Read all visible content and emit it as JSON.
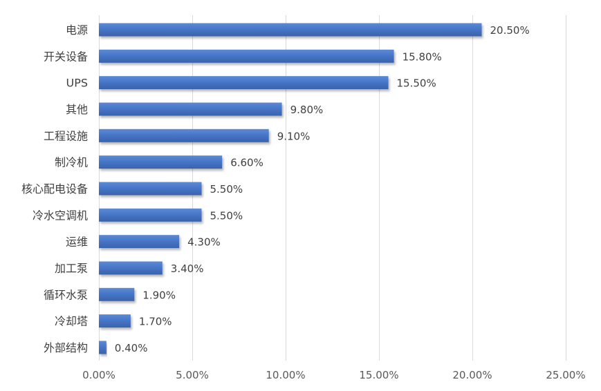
{
  "chart_data": {
    "type": "bar",
    "orientation": "horizontal",
    "categories": [
      "电源",
      "开关设备",
      "UPS",
      "其他",
      "工程设施",
      "制冷机",
      "核心配电设备",
      "冷水空调机",
      "运维",
      "加工泵",
      "循环水泵",
      "冷却塔",
      "外部结构"
    ],
    "values": [
      20.5,
      15.8,
      15.5,
      9.8,
      9.1,
      6.6,
      5.5,
      5.5,
      4.3,
      3.4,
      1.9,
      1.7,
      0.4
    ],
    "value_labels": [
      "20.50%",
      "15.80%",
      "15.50%",
      "9.80%",
      "9.10%",
      "6.60%",
      "5.50%",
      "5.50%",
      "4.30%",
      "3.40%",
      "1.90%",
      "1.70%",
      "0.40%"
    ],
    "x_ticks": [
      "0.00%",
      "5.00%",
      "10.00%",
      "15.00%",
      "20.00%",
      "25.00%"
    ],
    "xlim": [
      0,
      25
    ],
    "grid": true,
    "legend": "none",
    "bar_color": "#4472c4",
    "title": "",
    "xlabel": "",
    "ylabel": ""
  }
}
